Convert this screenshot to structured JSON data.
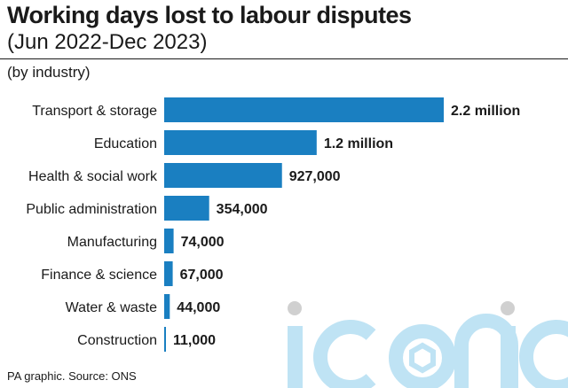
{
  "header": {
    "title": "Working days lost to labour disputes",
    "subtitle": "(Jun 2022-Dec 2023)",
    "note": "(by industry)"
  },
  "footer": {
    "source": "PA graphic. Source: ONS"
  },
  "watermark": {
    "text": "iconic",
    "color": "#bfe3f4"
  },
  "colors": {
    "bar": "#1a7fc1",
    "text": "#1a1a1a"
  },
  "chart_data": {
    "type": "bar",
    "orientation": "horizontal",
    "categories": [
      "Transport & storage",
      "Education",
      "Health & social work",
      "Public administration",
      "Manufacturing",
      "Finance & science",
      "Water & waste",
      "Construction"
    ],
    "values": [
      2200000,
      1200000,
      927000,
      354000,
      74000,
      67000,
      44000,
      11000
    ],
    "value_labels": [
      "2.2 million",
      "1.2 million",
      "927,000",
      "354,000",
      "74,000",
      "67,000",
      "44,000",
      "11,000"
    ],
    "grid": false,
    "legend": "none"
  }
}
